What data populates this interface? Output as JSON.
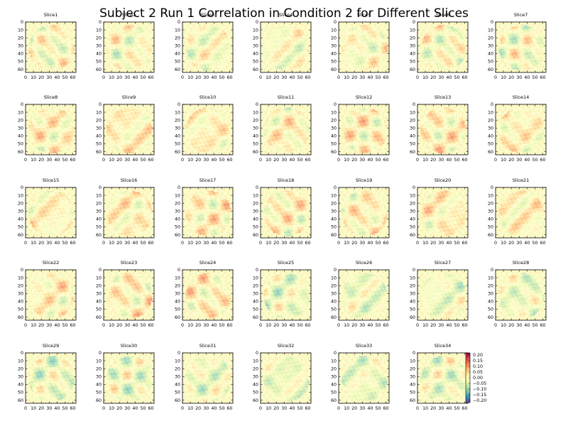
{
  "chart_data": {
    "type": "heatmap",
    "title": "Subject 2 Run 1 Correlation in Condition 2 for Different Slices",
    "panels": [
      "Slice1",
      "Slice2",
      "Slice3",
      "Slice4",
      "Slice5",
      "Slice6",
      "Slice7",
      "Slice8",
      "Slice9",
      "Slice10",
      "Slice11",
      "Slice12",
      "Slice13",
      "Slice14",
      "Slice15",
      "Slice16",
      "Slice17",
      "Slice18",
      "Slice19",
      "Slice20",
      "Slice21",
      "Slice22",
      "Slice23",
      "Slice24",
      "Slice25",
      "Slice26",
      "Slice27",
      "Slice28",
      "Slice29",
      "Slice30",
      "Slice31",
      "Slice32",
      "Slice33",
      "Slice34"
    ],
    "grid": {
      "rows": 5,
      "cols": 7
    },
    "x_ticks": [
      0,
      10,
      20,
      30,
      40,
      50,
      60
    ],
    "y_ticks": [
      0,
      10,
      20,
      30,
      40,
      50,
      60
    ],
    "xlim": [
      0,
      64
    ],
    "ylim": [
      64,
      0
    ],
    "matrix_size": [
      64,
      64
    ],
    "colorbar": {
      "ticks": [
        "0.20",
        "0.15",
        "0.10",
        "0.05",
        "0.00",
        "−0.05",
        "−0.10",
        "−0.15",
        "−0.20"
      ],
      "range": [
        -0.2,
        0.2
      ],
      "colormap": "Spectral_r",
      "colors": [
        "#5e4fa2",
        "#3288bd",
        "#66c2a5",
        "#abdda4",
        "#e6f598",
        "#ffffbf",
        "#fee08b",
        "#fdae61",
        "#f46d43",
        "#d53e4f",
        "#9e0142"
      ]
    }
  }
}
